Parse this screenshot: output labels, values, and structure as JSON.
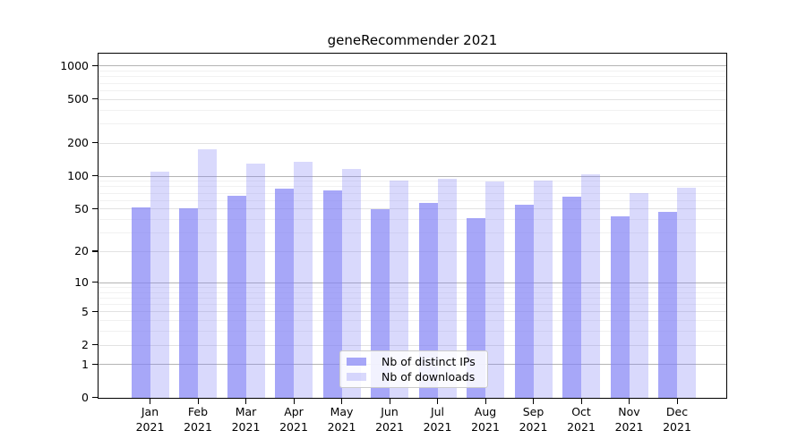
{
  "chart_data": {
    "type": "bar",
    "title": "geneRecommender 2021",
    "categories": [
      "Jan 2021",
      "Feb 2021",
      "Mar 2021",
      "Apr 2021",
      "May 2021",
      "Jun 2021",
      "Jul 2021",
      "Aug 2021",
      "Sep 2021",
      "Oct 2021",
      "Nov 2021",
      "Dec 2021"
    ],
    "series": [
      {
        "name": "Nb of distinct IPs",
        "color": "rgba(130,130,245,0.7)",
        "color_hex_on_white": "#a9a9f6",
        "values": [
          51,
          50,
          65,
          76,
          74,
          49,
          56,
          41,
          54,
          64,
          42,
          47
        ]
      },
      {
        "name": "Nb of downloads",
        "color": "rgba(130,130,245,0.3)",
        "color_hex_on_white": "#d9d9f9",
        "values": [
          110,
          175,
          130,
          135,
          115,
          90,
          94,
          88,
          90,
          104,
          69,
          78
        ]
      }
    ],
    "y_axis": {
      "scale": "log10(value+1)",
      "tick_values": [
        0,
        1,
        2,
        5,
        10,
        20,
        50,
        100,
        200,
        500,
        1000
      ],
      "range": [
        0,
        1285
      ],
      "grid": true
    },
    "x_axis": {
      "label_format": "month over year, two lines"
    },
    "legend": {
      "position": "lower-center-inside",
      "entries": [
        "Nb of distinct IPs",
        "Nb of downloads"
      ]
    },
    "colors": {
      "axis": "#000000",
      "grid_major": "#b4b4b4",
      "grid_mid": "#e2e2e2",
      "grid_minor": "#f1f1f1"
    }
  }
}
